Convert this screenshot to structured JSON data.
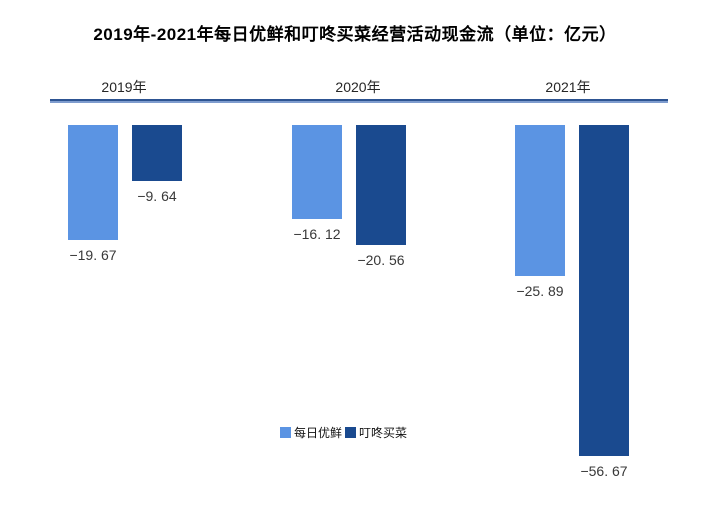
{
  "title": "2019年-2021年每日优鲜和叮咚买菜经营活动现金流（单位：亿元）",
  "colors": {
    "missfresh": "#5B94E3",
    "dingdong": "#1A4A8F",
    "axis_line_top": "#2D5492",
    "axis_line_bottom": "#7E9CCE",
    "title_text": "#000000",
    "value_label_text": "#383838",
    "background": "#FFFFFF"
  },
  "legend": [
    {
      "name": "每日优鲜",
      "color_key": "missfresh"
    },
    {
      "name": "叮咚买菜",
      "color_key": "dingdong"
    }
  ],
  "chart_data": {
    "type": "bar",
    "title": "2019年-2021年每日优鲜和叮咚买菜经营活动现金流（单位：亿元）",
    "unit": "亿元",
    "categories": [
      "2019年",
      "2020年",
      "2021年"
    ],
    "series": [
      {
        "name": "每日优鲜",
        "color": "#5B94E3",
        "values": [
          -19.67,
          -16.12,
          -25.89
        ],
        "labels": [
          "−19. 67",
          "−16. 12",
          "−25. 89"
        ]
      },
      {
        "name": "叮咚买菜",
        "color": "#1A4A8F",
        "values": [
          -9.64,
          -20.56,
          -56.67
        ],
        "labels": [
          "−9. 64",
          "−20. 56",
          "−56. 67"
        ]
      }
    ],
    "baseline": 0,
    "ylim": [
      -60,
      0
    ],
    "grid": false,
    "legend_position": "bottom",
    "bar_direction": "down-from-top-baseline"
  }
}
